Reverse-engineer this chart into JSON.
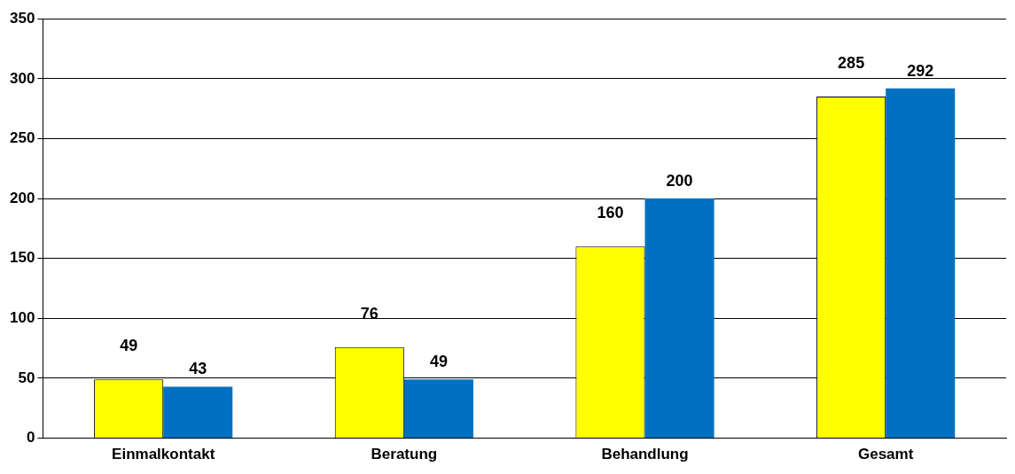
{
  "chart_data": {
    "type": "bar",
    "categories": [
      "Einmalkontakt",
      "Beratung",
      "Behandlung",
      "Gesamt"
    ],
    "series": [
      {
        "color": "#ffff00",
        "values": [
          49,
          76,
          160,
          285
        ]
      },
      {
        "color": "#0070c0",
        "values": [
          43,
          49,
          200,
          292
        ]
      }
    ],
    "ylim": [
      0,
      350
    ],
    "yticks": [
      0,
      50,
      100,
      150,
      200,
      250,
      300,
      350
    ],
    "grid": "y",
    "data_labels": true,
    "legend": false
  }
}
